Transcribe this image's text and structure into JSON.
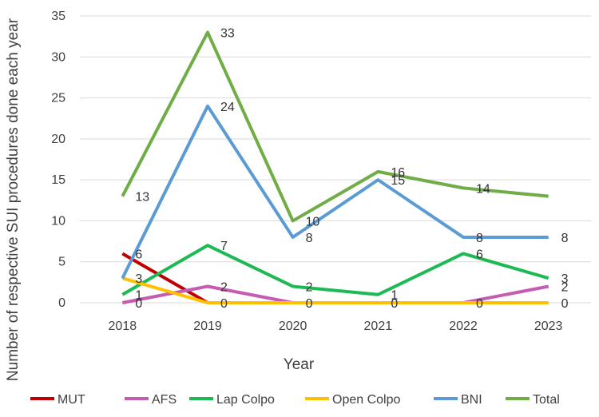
{
  "chart_data": {
    "type": "line",
    "title": "",
    "xlabel": "Year",
    "ylabel": "Number of respective SUI procedures done each year",
    "categories": [
      "2018",
      "2019",
      "2020",
      "2021",
      "2022",
      "2023"
    ],
    "ylim": [
      0,
      35
    ],
    "yticks": [
      0,
      5,
      10,
      15,
      20,
      25,
      30,
      35
    ],
    "grid": true,
    "legend_position": "bottom",
    "series": [
      {
        "name": "MUT",
        "color": "#c00000",
        "values": [
          6,
          0,
          null,
          null,
          null,
          null
        ],
        "labels": [
          "6",
          "",
          "",
          "",
          "",
          ""
        ]
      },
      {
        "name": "AFS",
        "color": "#c55cb1",
        "values": [
          0,
          2,
          0,
          0,
          0,
          2
        ],
        "labels": [
          "0",
          "2",
          "",
          "",
          "",
          "2"
        ]
      },
      {
        "name": "Lap Colpo",
        "color": "#1db954",
        "values": [
          1,
          7,
          2,
          1,
          6,
          3
        ],
        "labels": [
          "1",
          "7",
          "2",
          "1",
          "6",
          "3"
        ]
      },
      {
        "name": "Open Colpo",
        "color": "#ffc000",
        "values": [
          3,
          0,
          0,
          0,
          0,
          0
        ],
        "labels": [
          "3",
          "0",
          "0",
          "0",
          "0",
          "0"
        ]
      },
      {
        "name": "BNI",
        "color": "#5b9bd5",
        "values": [
          3,
          24,
          8,
          15,
          8,
          8
        ],
        "labels": [
          "",
          "24",
          "8",
          "15",
          "8",
          "8"
        ]
      },
      {
        "name": "Total",
        "color": "#70ad47",
        "values": [
          13,
          33,
          10,
          16,
          14,
          13
        ],
        "labels": [
          "13",
          "33",
          "10",
          "16",
          "14",
          ""
        ]
      }
    ]
  }
}
